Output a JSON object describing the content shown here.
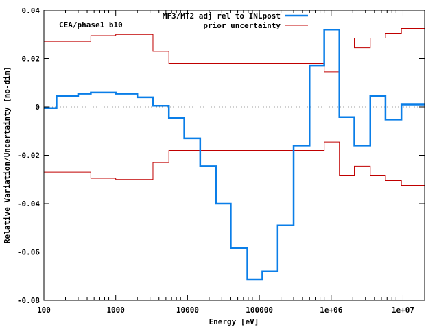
{
  "chart_data": {
    "type": "line",
    "title": "",
    "annotation": "CEA/phase1 b10",
    "xlabel": "Energy [eV]",
    "ylabel": "Relative Variation/Uncertainty [no-dim]",
    "xscale": "log",
    "xlim": [
      100,
      20000000
    ],
    "ylim": [
      -0.08,
      0.04
    ],
    "xticks": [
      {
        "value": 100,
        "label": "100"
      },
      {
        "value": 1000,
        "label": "1000"
      },
      {
        "value": 10000,
        "label": "10000"
      },
      {
        "value": 100000,
        "label": "100000"
      },
      {
        "value": 1000000,
        "label": "1e+06"
      },
      {
        "value": 10000000,
        "label": "1e+07"
      }
    ],
    "yticks": [
      {
        "value": 0.04,
        "label": "0.04"
      },
      {
        "value": 0.02,
        "label": "0.02"
      },
      {
        "value": 0,
        "label": "0"
      },
      {
        "value": -0.02,
        "label": "-0.02"
      },
      {
        "value": -0.04,
        "label": "-0.04"
      },
      {
        "value": -0.06,
        "label": "-0.06"
      },
      {
        "value": -0.08,
        "label": "-0.08"
      }
    ],
    "legend_position": "top-right",
    "zero_line": true,
    "bin_edges": [
      100,
      150,
      300,
      450,
      1000,
      2000,
      3300,
      5500,
      9000,
      15000,
      25000,
      40000,
      68000,
      110000,
      180000,
      300000,
      500000,
      800000,
      1300000,
      2100000,
      3500000,
      5700000,
      9500000,
      20000000
    ],
    "series": [
      {
        "name": "MF3/MT2 adj rel to INLpost",
        "color": "#0a7ee8",
        "style": "step",
        "values": [
          -0.0005,
          0.0045,
          0.0055,
          0.006,
          0.0055,
          0.004,
          0.0005,
          -0.0045,
          -0.013,
          -0.0245,
          -0.04,
          -0.0585,
          -0.0715,
          -0.068,
          -0.049,
          -0.016,
          0.017,
          0.032,
          -0.0042,
          -0.016,
          0.0045,
          -0.0052,
          0.001
        ]
      },
      {
        "name": "prior uncertainty",
        "color": "#c00000",
        "style": "step-band",
        "values": [
          0.027,
          0.027,
          0.027,
          0.0295,
          0.03,
          0.03,
          0.023,
          0.018,
          0.018,
          0.018,
          0.018,
          0.018,
          0.018,
          0.018,
          0.018,
          0.018,
          0.018,
          0.0145,
          0.0285,
          0.0245,
          0.0285,
          0.0305,
          0.0325
        ]
      }
    ]
  }
}
